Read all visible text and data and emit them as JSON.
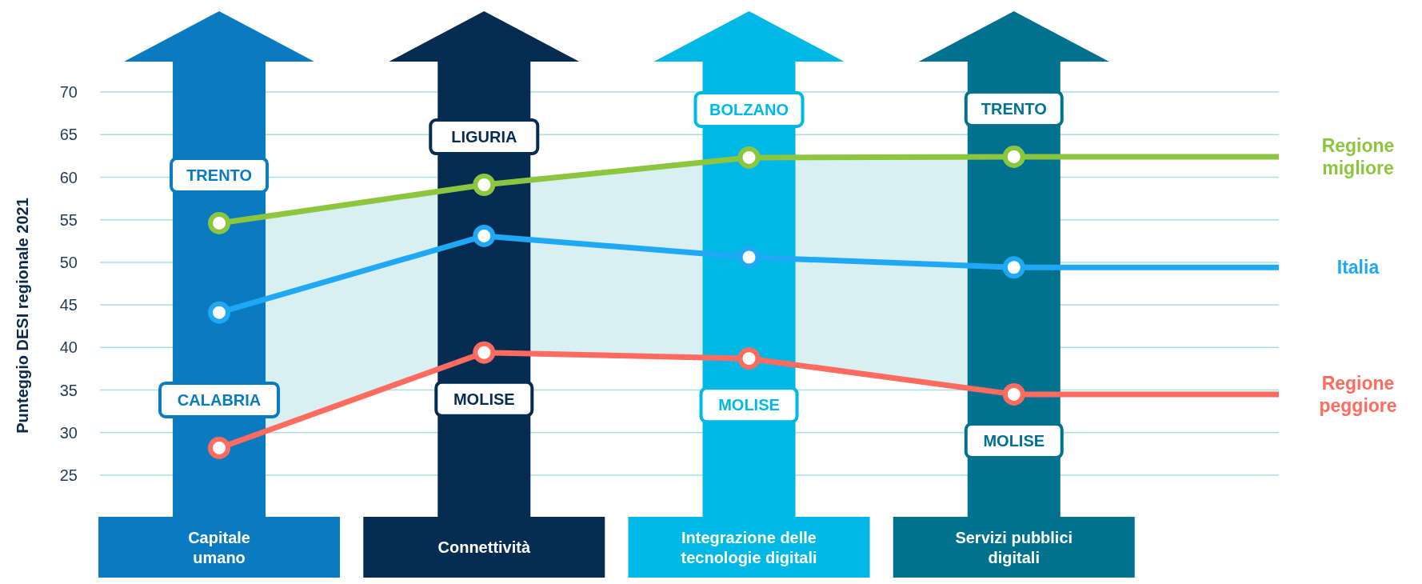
{
  "chart_data": {
    "type": "line",
    "ylabel": "Punteggio DESI regionale 2021",
    "categories": [
      "Capitale umano",
      "Connettività",
      "Integrazione delle tecnologie digitali",
      "Servizi pubblici digitali",
      null
    ],
    "series": [
      {
        "name": "Regione migliore",
        "color": "#8cc63f",
        "values": [
          54.6,
          59.1,
          62.3,
          62.4,
          62.4
        ]
      },
      {
        "name": "Italia",
        "color": "#1fa8f5",
        "values": [
          44.1,
          53.1,
          50.6,
          49.4,
          49.4
        ]
      },
      {
        "name": "Regione peggiore",
        "color": "#ff6b5e",
        "values": [
          28.2,
          39.4,
          38.7,
          34.5,
          34.5
        ]
      }
    ],
    "ylim": [
      25,
      70
    ],
    "yticks": [
      25,
      30,
      35,
      40,
      45,
      50,
      55,
      60,
      65,
      70
    ],
    "grid": "y",
    "marker": "circle",
    "line_style": "solid",
    "annotations": [
      {
        "text": "TRENTO",
        "x": "Capitale umano",
        "y": 54.6
      },
      {
        "text": "LIGURIA",
        "x": "Connettività",
        "y": 59.1
      },
      {
        "text": "BOLZANO",
        "x": "Integrazione delle tecnologie digitali",
        "y": 62.3
      },
      {
        "text": "TRENTO",
        "x": "Servizi pubblici digitali",
        "y": 62.4
      },
      {
        "text": "CALABRIA",
        "x": "Capitale umano",
        "y": 28.2
      },
      {
        "text": "MOLISE",
        "x": "Connettività",
        "y": 39.4
      },
      {
        "text": "MOLISE",
        "x": "Integrazione delle tecnologie digitali",
        "y": 38.7
      },
      {
        "text": "MOLISE",
        "x": "Servizi pubblici digitali",
        "y": 34.5
      }
    ]
  }
}
